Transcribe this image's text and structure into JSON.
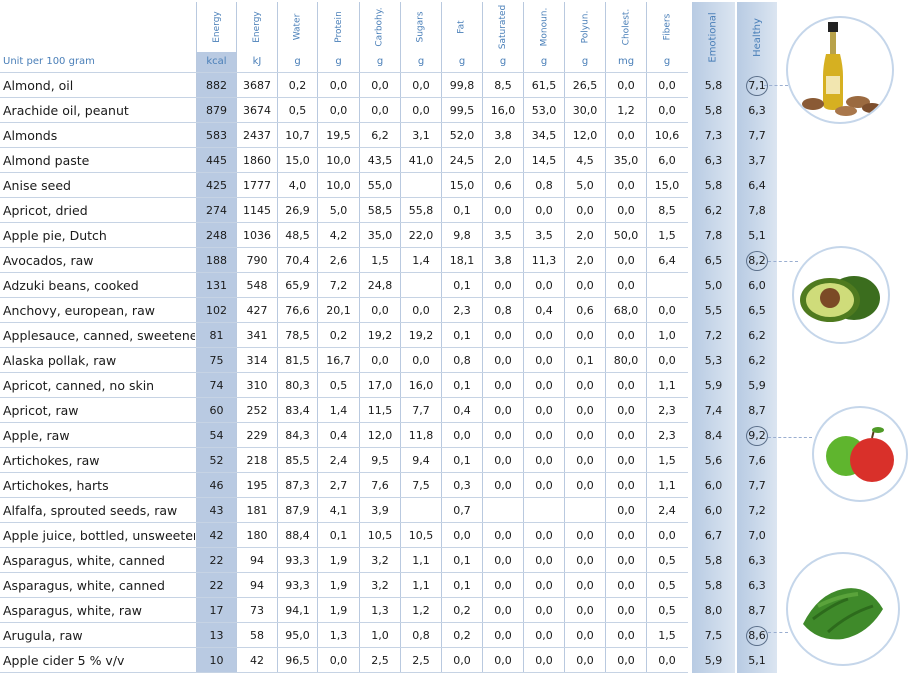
{
  "unit_label": "Unit per 100 gram",
  "columns": [
    {
      "label": "Energy",
      "unit": "kcal"
    },
    {
      "label": "Energy",
      "unit": "kJ"
    },
    {
      "label": "Water",
      "unit": "g"
    },
    {
      "label": "Protein",
      "unit": "g"
    },
    {
      "label": "Carbohy.",
      "unit": "g"
    },
    {
      "label": "Sugars",
      "unit": "g"
    },
    {
      "label": "Fat",
      "unit": "g"
    },
    {
      "label": "Saturated",
      "unit": "g"
    },
    {
      "label": "Monoun.",
      "unit": "g"
    },
    {
      "label": "Polyun.",
      "unit": "g"
    },
    {
      "label": "Cholest.",
      "unit": "mg"
    },
    {
      "label": "Fibers",
      "unit": "g"
    },
    {
      "label": "Emotional",
      "unit": ""
    },
    {
      "label": "Healthy",
      "unit": ""
    }
  ],
  "rows": [
    {
      "name": "Almond, oil",
      "v": [
        "882",
        "3687",
        "0,2",
        "0,0",
        "0,0",
        "0,0",
        "99,8",
        "8,5",
        "61,5",
        "26,5",
        "0,0",
        "0,0",
        "5,8",
        "7,1"
      ],
      "circled": true
    },
    {
      "name": "Arachide oil, peanut",
      "v": [
        "879",
        "3674",
        "0,5",
        "0,0",
        "0,0",
        "0,0",
        "99,5",
        "16,0",
        "53,0",
        "30,0",
        "1,2",
        "0,0",
        "5,8",
        "6,3"
      ]
    },
    {
      "name": "Almonds",
      "v": [
        "583",
        "2437",
        "10,7",
        "19,5",
        "6,2",
        "3,1",
        "52,0",
        "3,8",
        "34,5",
        "12,0",
        "0,0",
        "10,6",
        "7,3",
        "7,7"
      ]
    },
    {
      "name": "Almond paste",
      "v": [
        "445",
        "1860",
        "15,0",
        "10,0",
        "43,5",
        "41,0",
        "24,5",
        "2,0",
        "14,5",
        "4,5",
        "35,0",
        "6,0",
        "6,3",
        "3,7"
      ]
    },
    {
      "name": "Anise seed",
      "v": [
        "425",
        "1777",
        "4,0",
        "10,0",
        "55,0",
        "",
        "15,0",
        "0,6",
        "0,8",
        "5,0",
        "0,0",
        "15,0",
        "5,8",
        "6,4"
      ]
    },
    {
      "name": "Apricot, dried",
      "v": [
        "274",
        "1145",
        "26,9",
        "5,0",
        "58,5",
        "55,8",
        "0,1",
        "0,0",
        "0,0",
        "0,0",
        "0,0",
        "8,5",
        "6,2",
        "7,8"
      ]
    },
    {
      "name": "Apple pie, Dutch",
      "v": [
        "248",
        "1036",
        "48,5",
        "4,2",
        "35,0",
        "22,0",
        "9,8",
        "3,5",
        "3,5",
        "2,0",
        "50,0",
        "1,5",
        "7,8",
        "5,1"
      ]
    },
    {
      "name": "Avocados, raw",
      "v": [
        "188",
        "790",
        "70,4",
        "2,6",
        "1,5",
        "1,4",
        "18,1",
        "3,8",
        "11,3",
        "2,0",
        "0,0",
        "6,4",
        "6,5",
        "8,2"
      ],
      "circled": true
    },
    {
      "name": "Adzuki beans, cooked",
      "v": [
        "131",
        "548",
        "65,9",
        "7,2",
        "24,8",
        "",
        "0,1",
        "0,0",
        "0,0",
        "0,0",
        "0,0",
        "",
        "5,0",
        "6,0"
      ]
    },
    {
      "name": "Anchovy, european, raw",
      "v": [
        "102",
        "427",
        "76,6",
        "20,1",
        "0,0",
        "0,0",
        "2,3",
        "0,8",
        "0,4",
        "0,6",
        "68,0",
        "0,0",
        "5,5",
        "6,5"
      ]
    },
    {
      "name": "Applesauce, canned, sweetened",
      "v": [
        "81",
        "341",
        "78,5",
        "0,2",
        "19,2",
        "19,2",
        "0,1",
        "0,0",
        "0,0",
        "0,0",
        "0,0",
        "1,0",
        "7,2",
        "6,2"
      ]
    },
    {
      "name": "Alaska pollak, raw",
      "v": [
        "75",
        "314",
        "81,5",
        "16,7",
        "0,0",
        "0,0",
        "0,8",
        "0,0",
        "0,0",
        "0,1",
        "80,0",
        "0,0",
        "5,3",
        "6,2"
      ]
    },
    {
      "name": "Apricot, canned, no skin",
      "v": [
        "74",
        "310",
        "80,3",
        "0,5",
        "17,0",
        "16,0",
        "0,1",
        "0,0",
        "0,0",
        "0,0",
        "0,0",
        "1,1",
        "5,9",
        "5,9"
      ]
    },
    {
      "name": "Apricot, raw",
      "v": [
        "60",
        "252",
        "83,4",
        "1,4",
        "11,5",
        "7,7",
        "0,4",
        "0,0",
        "0,0",
        "0,0",
        "0,0",
        "2,3",
        "7,4",
        "8,7"
      ]
    },
    {
      "name": "Apple, raw",
      "v": [
        "54",
        "229",
        "84,3",
        "0,4",
        "12,0",
        "11,8",
        "0,0",
        "0,0",
        "0,0",
        "0,0",
        "0,0",
        "2,3",
        "8,4",
        "9,2"
      ],
      "circled": true
    },
    {
      "name": "Artichokes, raw",
      "v": [
        "52",
        "218",
        "85,5",
        "2,4",
        "9,5",
        "9,4",
        "0,1",
        "0,0",
        "0,0",
        "0,0",
        "0,0",
        "1,5",
        "5,6",
        "7,6"
      ]
    },
    {
      "name": "Artichokes, harts",
      "v": [
        "46",
        "195",
        "87,3",
        "2,7",
        "7,6",
        "7,5",
        "0,3",
        "0,0",
        "0,0",
        "0,0",
        "0,0",
        "1,1",
        "6,0",
        "7,7"
      ]
    },
    {
      "name": "Alfalfa, sprouted seeds, raw",
      "v": [
        "43",
        "181",
        "87,9",
        "4,1",
        "3,9",
        "",
        "0,7",
        "",
        "",
        "",
        "0,0",
        "2,4",
        "6,0",
        "7,2"
      ]
    },
    {
      "name": "Apple juice, bottled, unsweetened",
      "v": [
        "42",
        "180",
        "88,4",
        "0,1",
        "10,5",
        "10,5",
        "0,0",
        "0,0",
        "0,0",
        "0,0",
        "0,0",
        "0,0",
        "6,7",
        "7,0"
      ]
    },
    {
      "name": "Asparagus, white, canned",
      "v": [
        "22",
        "94",
        "93,3",
        "1,9",
        "3,2",
        "1,1",
        "0,1",
        "0,0",
        "0,0",
        "0,0",
        "0,0",
        "0,5",
        "5,8",
        "6,3"
      ]
    },
    {
      "name": "Asparagus, white, canned",
      "v": [
        "22",
        "94",
        "93,3",
        "1,9",
        "3,2",
        "1,1",
        "0,1",
        "0,0",
        "0,0",
        "0,0",
        "0,0",
        "0,5",
        "5,8",
        "6,3"
      ]
    },
    {
      "name": "Asparagus, white, raw",
      "v": [
        "17",
        "73",
        "94,1",
        "1,9",
        "1,3",
        "1,2",
        "0,2",
        "0,0",
        "0,0",
        "0,0",
        "0,0",
        "0,5",
        "8,0",
        "8,7"
      ]
    },
    {
      "name": "Arugula, raw",
      "v": [
        "13",
        "58",
        "95,0",
        "1,3",
        "1,0",
        "0,8",
        "0,2",
        "0,0",
        "0,0",
        "0,0",
        "0,0",
        "1,5",
        "7,5",
        "8,6"
      ],
      "circled": true
    },
    {
      "name": "Apple cider 5 % v/v",
      "v": [
        "10",
        "42",
        "96,5",
        "0,0",
        "2,5",
        "2,5",
        "0,0",
        "0,0",
        "0,0",
        "0,0",
        "0,0",
        "0,0",
        "5,9",
        "5,1"
      ]
    }
  ],
  "images": [
    {
      "name": "almond-oil-bottle-image"
    },
    {
      "name": "avocado-image"
    },
    {
      "name": "apple-image"
    },
    {
      "name": "arugula-image"
    }
  ]
}
